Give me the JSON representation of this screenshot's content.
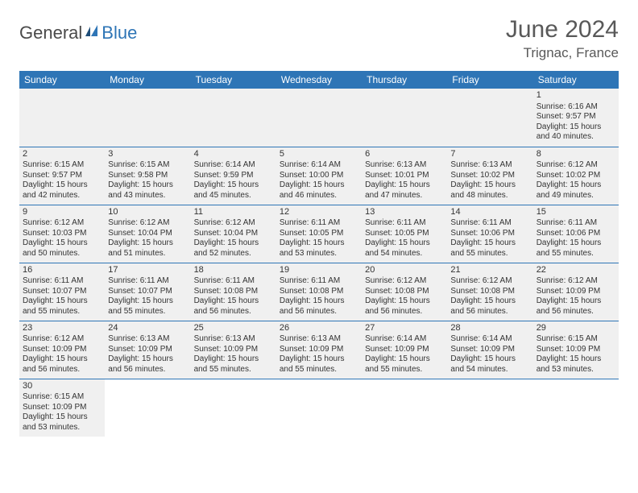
{
  "logo": {
    "general": "General",
    "blue": "Blue"
  },
  "title": "June 2024",
  "location": "Trignac, France",
  "colors": {
    "header_bg": "#2e75b6",
    "header_fg": "#ffffff",
    "cell_bg": "#f0f0f0",
    "text": "#333333",
    "title_color": "#595959"
  },
  "day_headers": [
    "Sunday",
    "Monday",
    "Tuesday",
    "Wednesday",
    "Thursday",
    "Friday",
    "Saturday"
  ],
  "weeks": [
    [
      null,
      null,
      null,
      null,
      null,
      null,
      {
        "n": "1",
        "sr": "Sunrise: 6:16 AM",
        "ss": "Sunset: 9:57 PM",
        "d1": "Daylight: 15 hours",
        "d2": "and 40 minutes."
      }
    ],
    [
      {
        "n": "2",
        "sr": "Sunrise: 6:15 AM",
        "ss": "Sunset: 9:57 PM",
        "d1": "Daylight: 15 hours",
        "d2": "and 42 minutes."
      },
      {
        "n": "3",
        "sr": "Sunrise: 6:15 AM",
        "ss": "Sunset: 9:58 PM",
        "d1": "Daylight: 15 hours",
        "d2": "and 43 minutes."
      },
      {
        "n": "4",
        "sr": "Sunrise: 6:14 AM",
        "ss": "Sunset: 9:59 PM",
        "d1": "Daylight: 15 hours",
        "d2": "and 45 minutes."
      },
      {
        "n": "5",
        "sr": "Sunrise: 6:14 AM",
        "ss": "Sunset: 10:00 PM",
        "d1": "Daylight: 15 hours",
        "d2": "and 46 minutes."
      },
      {
        "n": "6",
        "sr": "Sunrise: 6:13 AM",
        "ss": "Sunset: 10:01 PM",
        "d1": "Daylight: 15 hours",
        "d2": "and 47 minutes."
      },
      {
        "n": "7",
        "sr": "Sunrise: 6:13 AM",
        "ss": "Sunset: 10:02 PM",
        "d1": "Daylight: 15 hours",
        "d2": "and 48 minutes."
      },
      {
        "n": "8",
        "sr": "Sunrise: 6:12 AM",
        "ss": "Sunset: 10:02 PM",
        "d1": "Daylight: 15 hours",
        "d2": "and 49 minutes."
      }
    ],
    [
      {
        "n": "9",
        "sr": "Sunrise: 6:12 AM",
        "ss": "Sunset: 10:03 PM",
        "d1": "Daylight: 15 hours",
        "d2": "and 50 minutes."
      },
      {
        "n": "10",
        "sr": "Sunrise: 6:12 AM",
        "ss": "Sunset: 10:04 PM",
        "d1": "Daylight: 15 hours",
        "d2": "and 51 minutes."
      },
      {
        "n": "11",
        "sr": "Sunrise: 6:12 AM",
        "ss": "Sunset: 10:04 PM",
        "d1": "Daylight: 15 hours",
        "d2": "and 52 minutes."
      },
      {
        "n": "12",
        "sr": "Sunrise: 6:11 AM",
        "ss": "Sunset: 10:05 PM",
        "d1": "Daylight: 15 hours",
        "d2": "and 53 minutes."
      },
      {
        "n": "13",
        "sr": "Sunrise: 6:11 AM",
        "ss": "Sunset: 10:05 PM",
        "d1": "Daylight: 15 hours",
        "d2": "and 54 minutes."
      },
      {
        "n": "14",
        "sr": "Sunrise: 6:11 AM",
        "ss": "Sunset: 10:06 PM",
        "d1": "Daylight: 15 hours",
        "d2": "and 55 minutes."
      },
      {
        "n": "15",
        "sr": "Sunrise: 6:11 AM",
        "ss": "Sunset: 10:06 PM",
        "d1": "Daylight: 15 hours",
        "d2": "and 55 minutes."
      }
    ],
    [
      {
        "n": "16",
        "sr": "Sunrise: 6:11 AM",
        "ss": "Sunset: 10:07 PM",
        "d1": "Daylight: 15 hours",
        "d2": "and 55 minutes."
      },
      {
        "n": "17",
        "sr": "Sunrise: 6:11 AM",
        "ss": "Sunset: 10:07 PM",
        "d1": "Daylight: 15 hours",
        "d2": "and 55 minutes."
      },
      {
        "n": "18",
        "sr": "Sunrise: 6:11 AM",
        "ss": "Sunset: 10:08 PM",
        "d1": "Daylight: 15 hours",
        "d2": "and 56 minutes."
      },
      {
        "n": "19",
        "sr": "Sunrise: 6:11 AM",
        "ss": "Sunset: 10:08 PM",
        "d1": "Daylight: 15 hours",
        "d2": "and 56 minutes."
      },
      {
        "n": "20",
        "sr": "Sunrise: 6:12 AM",
        "ss": "Sunset: 10:08 PM",
        "d1": "Daylight: 15 hours",
        "d2": "and 56 minutes."
      },
      {
        "n": "21",
        "sr": "Sunrise: 6:12 AM",
        "ss": "Sunset: 10:08 PM",
        "d1": "Daylight: 15 hours",
        "d2": "and 56 minutes."
      },
      {
        "n": "22",
        "sr": "Sunrise: 6:12 AM",
        "ss": "Sunset: 10:09 PM",
        "d1": "Daylight: 15 hours",
        "d2": "and 56 minutes."
      }
    ],
    [
      {
        "n": "23",
        "sr": "Sunrise: 6:12 AM",
        "ss": "Sunset: 10:09 PM",
        "d1": "Daylight: 15 hours",
        "d2": "and 56 minutes."
      },
      {
        "n": "24",
        "sr": "Sunrise: 6:13 AM",
        "ss": "Sunset: 10:09 PM",
        "d1": "Daylight: 15 hours",
        "d2": "and 56 minutes."
      },
      {
        "n": "25",
        "sr": "Sunrise: 6:13 AM",
        "ss": "Sunset: 10:09 PM",
        "d1": "Daylight: 15 hours",
        "d2": "and 55 minutes."
      },
      {
        "n": "26",
        "sr": "Sunrise: 6:13 AM",
        "ss": "Sunset: 10:09 PM",
        "d1": "Daylight: 15 hours",
        "d2": "and 55 minutes."
      },
      {
        "n": "27",
        "sr": "Sunrise: 6:14 AM",
        "ss": "Sunset: 10:09 PM",
        "d1": "Daylight: 15 hours",
        "d2": "and 55 minutes."
      },
      {
        "n": "28",
        "sr": "Sunrise: 6:14 AM",
        "ss": "Sunset: 10:09 PM",
        "d1": "Daylight: 15 hours",
        "d2": "and 54 minutes."
      },
      {
        "n": "29",
        "sr": "Sunrise: 6:15 AM",
        "ss": "Sunset: 10:09 PM",
        "d1": "Daylight: 15 hours",
        "d2": "and 53 minutes."
      }
    ],
    [
      {
        "n": "30",
        "sr": "Sunrise: 6:15 AM",
        "ss": "Sunset: 10:09 PM",
        "d1": "Daylight: 15 hours",
        "d2": "and 53 minutes."
      },
      null,
      null,
      null,
      null,
      null,
      null
    ]
  ]
}
